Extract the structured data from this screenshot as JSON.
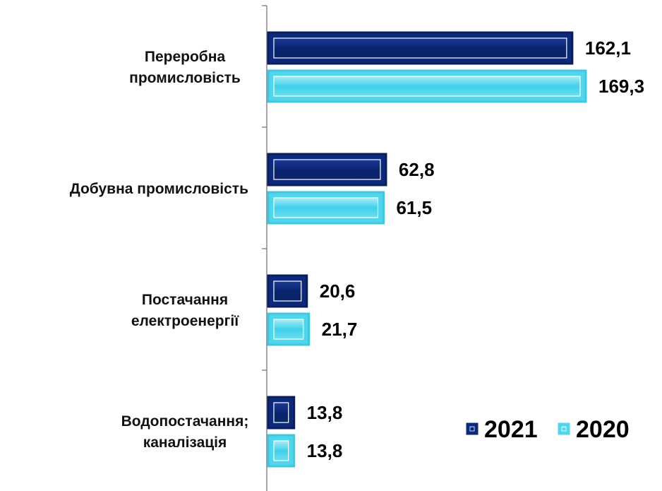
{
  "chart_data": {
    "type": "bar",
    "orientation": "horizontal",
    "categories": [
      [
        "Переробна",
        "промисловість"
      ],
      [
        "Добувна промисловість"
      ],
      [
        "Постачання",
        "електроенергії"
      ],
      [
        "Водопостачання;",
        "каналізація"
      ]
    ],
    "series": [
      {
        "name": "2021",
        "values": [
          162.1,
          62.8,
          20.6,
          13.8
        ],
        "labels": [
          "162,1",
          "62,8",
          "20,6",
          "13,8"
        ],
        "color": "#0B2A7E",
        "inner_color": "#0D2F8C",
        "border": "#FFFFFF"
      },
      {
        "name": "2020",
        "values": [
          169.3,
          61.5,
          21.7,
          13.8
        ],
        "labels": [
          "169,3",
          "61,5",
          "21,7",
          "13,8"
        ],
        "color": "#4DD6EE",
        "inner_color": "#8FE4F4",
        "border": "#FFFFFF"
      }
    ],
    "xlim": [
      0,
      169.3
    ],
    "grid": false,
    "legend": "bottom-right"
  }
}
